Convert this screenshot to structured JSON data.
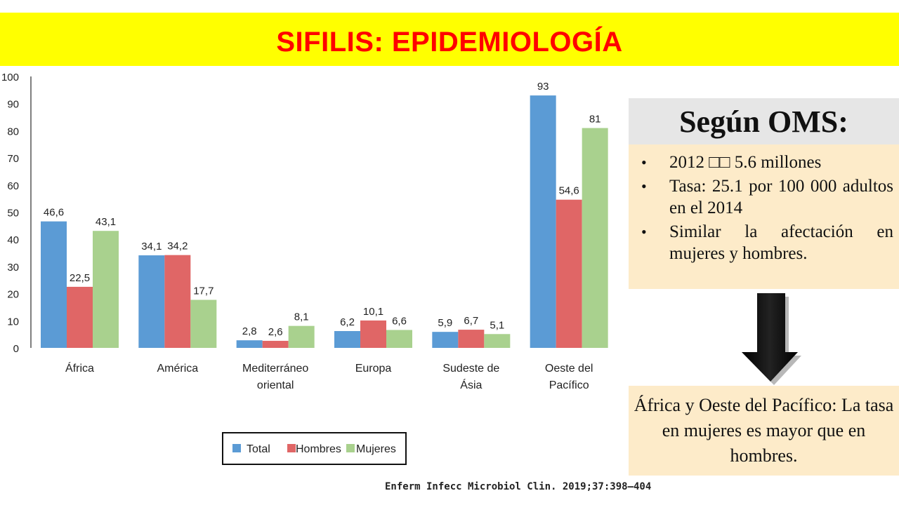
{
  "title": "SIFILIS: EPIDEMIOLOGÍA",
  "citation": "Enferm Infecc Microbiol Clin. 2019;37:398–404",
  "oms": {
    "header": "Según OMS:",
    "items": [
      "2012 □□ 5.6 millones",
      "Tasa: 25.1 por 100 000 adultos en el 2014",
      "Similar la afectación en mujeres y hombres."
    ],
    "conclusion": "África y Oeste del Pacífico: La tasa en mujeres es mayor que en hombres."
  },
  "arrow_icon": "down-arrow-icon",
  "colors": {
    "title_bg": "#ffff00",
    "title_text": "#ff0000",
    "total": "#5b9bd5",
    "hombres": "#e06666",
    "mujeres": "#a9d18e",
    "panel_bg": "#fdebc9"
  },
  "chart_data": {
    "type": "bar",
    "categories": [
      [
        "África"
      ],
      [
        "América"
      ],
      [
        "Mediterráneo",
        "oriental"
      ],
      [
        "Europa"
      ],
      [
        "Sudeste de",
        "Ásia"
      ],
      [
        "Oeste del",
        "Pacífico"
      ]
    ],
    "series": [
      {
        "name": "Total",
        "color": "#5b9bd5",
        "values": [
          46.6,
          34.1,
          2.8,
          6.2,
          5.9,
          93
        ],
        "labels": [
          "46,6",
          "34,1",
          "2,8",
          "6,2",
          "5,9",
          "93"
        ]
      },
      {
        "name": "Hombres",
        "color": "#e06666",
        "values": [
          22.5,
          34.2,
          2.6,
          10.1,
          6.7,
          54.6
        ],
        "labels": [
          "22,5",
          "34,2",
          "2,6",
          "10,1",
          "6,7",
          "54,6"
        ]
      },
      {
        "name": "Mujeres",
        "color": "#a9d18e",
        "values": [
          43.1,
          17.7,
          8.1,
          6.6,
          5.1,
          81
        ],
        "labels": [
          "43,1",
          "17,7",
          "8,1",
          "6,6",
          "5,1",
          "81"
        ]
      }
    ],
    "yticks": [
      "0",
      "10",
      "20",
      "30",
      "40",
      "50",
      "60",
      "70",
      "80",
      "90",
      "100"
    ],
    "ylim": [
      0,
      100
    ],
    "legend_position": "bottom"
  }
}
